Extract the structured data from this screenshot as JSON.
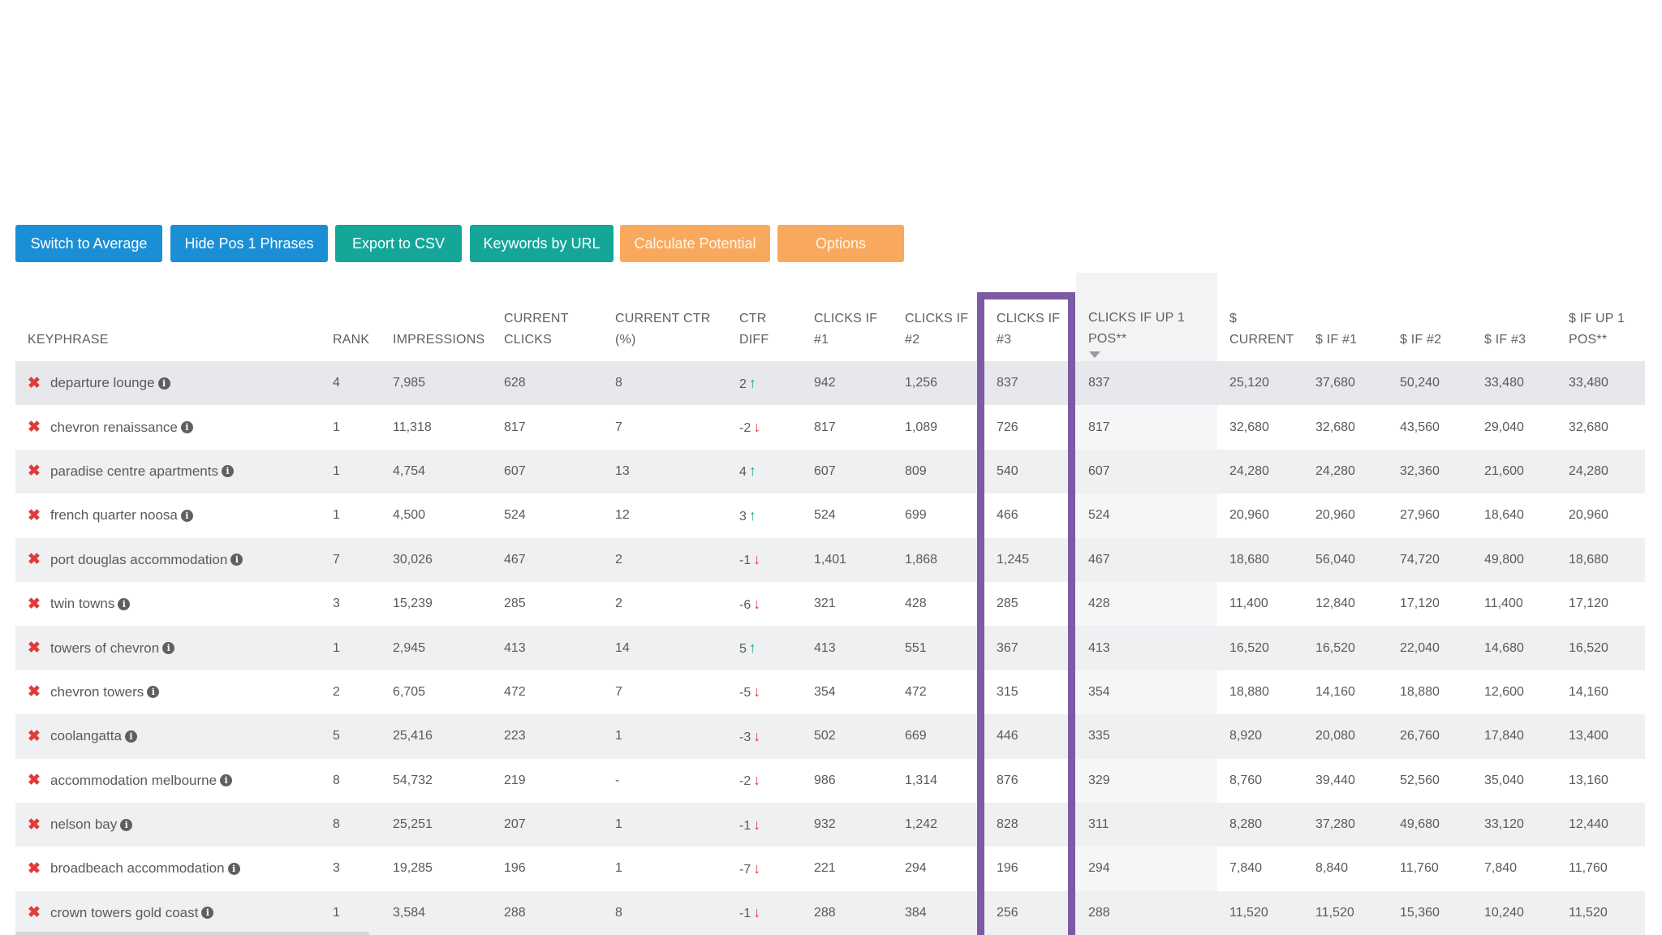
{
  "toolbar": {
    "buttons": [
      {
        "label": "Switch to Average",
        "color": "#1a8fd6"
      },
      {
        "label": "Hide Pos 1 Phrases",
        "color": "#1a8fd6"
      },
      {
        "label": "Export to CSV",
        "color": "#15a69a"
      },
      {
        "label": "Keywords by URL",
        "color": "#15a69a"
      },
      {
        "label": "Calculate Potential",
        "color": "#f9a95d"
      },
      {
        "label": "Options",
        "color": "#f9a95d"
      }
    ]
  },
  "table": {
    "columns": [
      "KEYPHRASE",
      "RANK",
      "IMPRESSIONS",
      "CURRENT CLICKS",
      "CURRENT CTR (%)",
      "CTR DIFF",
      "CLICKS IF #1",
      "CLICKS IF #2",
      "CLICKS IF #3",
      "CLICKS IF UP 1 POS**",
      "$ CURRENT",
      "$ IF #1",
      "$ IF #2",
      "$ IF #3",
      "$ IF UP 1 POS**"
    ],
    "sorted_column": "CLICKS IF UP 1 POS**",
    "highlighted_column": "CLICKS IF #3",
    "highlight_color": "#7d5aa6",
    "rows": [
      {
        "keyphrase": "departure lounge",
        "rank": "4",
        "impressions": "7,985",
        "current_clicks": "628",
        "current_ctr": "8",
        "ctr_diff": "2",
        "ctr_dir": "up",
        "clicks_1": "942",
        "clicks_2": "1,256",
        "clicks_3": "837",
        "clicks_up1": "837",
        "usd_current": "25,120",
        "usd_1": "37,680",
        "usd_2": "50,240",
        "usd_3": "33,480",
        "usd_up1": "33,480"
      },
      {
        "keyphrase": "chevron renaissance",
        "rank": "1",
        "impressions": "11,318",
        "current_clicks": "817",
        "current_ctr": "7",
        "ctr_diff": "-2",
        "ctr_dir": "down",
        "clicks_1": "817",
        "clicks_2": "1,089",
        "clicks_3": "726",
        "clicks_up1": "817",
        "usd_current": "32,680",
        "usd_1": "32,680",
        "usd_2": "43,560",
        "usd_3": "29,040",
        "usd_up1": "32,680"
      },
      {
        "keyphrase": "paradise centre apartments",
        "rank": "1",
        "impressions": "4,754",
        "current_clicks": "607",
        "current_ctr": "13",
        "ctr_diff": "4",
        "ctr_dir": "up",
        "clicks_1": "607",
        "clicks_2": "809",
        "clicks_3": "540",
        "clicks_up1": "607",
        "usd_current": "24,280",
        "usd_1": "24,280",
        "usd_2": "32,360",
        "usd_3": "21,600",
        "usd_up1": "24,280"
      },
      {
        "keyphrase": "french quarter noosa",
        "rank": "1",
        "impressions": "4,500",
        "current_clicks": "524",
        "current_ctr": "12",
        "ctr_diff": "3",
        "ctr_dir": "up",
        "clicks_1": "524",
        "clicks_2": "699",
        "clicks_3": "466",
        "clicks_up1": "524",
        "usd_current": "20,960",
        "usd_1": "20,960",
        "usd_2": "27,960",
        "usd_3": "18,640",
        "usd_up1": "20,960"
      },
      {
        "keyphrase": "port douglas accommodation",
        "rank": "7",
        "impressions": "30,026",
        "current_clicks": "467",
        "current_ctr": "2",
        "ctr_diff": "-1",
        "ctr_dir": "down",
        "clicks_1": "1,401",
        "clicks_2": "1,868",
        "clicks_3": "1,245",
        "clicks_up1": "467",
        "usd_current": "18,680",
        "usd_1": "56,040",
        "usd_2": "74,720",
        "usd_3": "49,800",
        "usd_up1": "18,680"
      },
      {
        "keyphrase": "twin towns",
        "rank": "3",
        "impressions": "15,239",
        "current_clicks": "285",
        "current_ctr": "2",
        "ctr_diff": "-6",
        "ctr_dir": "down",
        "clicks_1": "321",
        "clicks_2": "428",
        "clicks_3": "285",
        "clicks_up1": "428",
        "usd_current": "11,400",
        "usd_1": "12,840",
        "usd_2": "17,120",
        "usd_3": "11,400",
        "usd_up1": "17,120"
      },
      {
        "keyphrase": "towers of chevron",
        "rank": "1",
        "impressions": "2,945",
        "current_clicks": "413",
        "current_ctr": "14",
        "ctr_diff": "5",
        "ctr_dir": "up",
        "clicks_1": "413",
        "clicks_2": "551",
        "clicks_3": "367",
        "clicks_up1": "413",
        "usd_current": "16,520",
        "usd_1": "16,520",
        "usd_2": "22,040",
        "usd_3": "14,680",
        "usd_up1": "16,520"
      },
      {
        "keyphrase": "chevron towers",
        "rank": "2",
        "impressions": "6,705",
        "current_clicks": "472",
        "current_ctr": "7",
        "ctr_diff": "-5",
        "ctr_dir": "down",
        "clicks_1": "354",
        "clicks_2": "472",
        "clicks_3": "315",
        "clicks_up1": "354",
        "usd_current": "18,880",
        "usd_1": "14,160",
        "usd_2": "18,880",
        "usd_3": "12,600",
        "usd_up1": "14,160"
      },
      {
        "keyphrase": "coolangatta",
        "rank": "5",
        "impressions": "25,416",
        "current_clicks": "223",
        "current_ctr": "1",
        "ctr_diff": "-3",
        "ctr_dir": "down",
        "clicks_1": "502",
        "clicks_2": "669",
        "clicks_3": "446",
        "clicks_up1": "335",
        "usd_current": "8,920",
        "usd_1": "20,080",
        "usd_2": "26,760",
        "usd_3": "17,840",
        "usd_up1": "13,400"
      },
      {
        "keyphrase": "accommodation melbourne",
        "rank": "8",
        "impressions": "54,732",
        "current_clicks": "219",
        "current_ctr": "-",
        "ctr_diff": "-2",
        "ctr_dir": "down",
        "clicks_1": "986",
        "clicks_2": "1,314",
        "clicks_3": "876",
        "clicks_up1": "329",
        "usd_current": "8,760",
        "usd_1": "39,440",
        "usd_2": "52,560",
        "usd_3": "35,040",
        "usd_up1": "13,160"
      },
      {
        "keyphrase": "nelson bay",
        "rank": "8",
        "impressions": "25,251",
        "current_clicks": "207",
        "current_ctr": "1",
        "ctr_diff": "-1",
        "ctr_dir": "down",
        "clicks_1": "932",
        "clicks_2": "1,242",
        "clicks_3": "828",
        "clicks_up1": "311",
        "usd_current": "8,280",
        "usd_1": "37,280",
        "usd_2": "49,680",
        "usd_3": "33,120",
        "usd_up1": "12,440"
      },
      {
        "keyphrase": "broadbeach accommodation",
        "rank": "3",
        "impressions": "19,285",
        "current_clicks": "196",
        "current_ctr": "1",
        "ctr_diff": "-7",
        "ctr_dir": "down",
        "clicks_1": "221",
        "clicks_2": "294",
        "clicks_3": "196",
        "clicks_up1": "294",
        "usd_current": "7,840",
        "usd_1": "8,840",
        "usd_2": "11,760",
        "usd_3": "7,840",
        "usd_up1": "11,760"
      },
      {
        "keyphrase": "crown towers gold coast",
        "rank": "1",
        "impressions": "3,584",
        "current_clicks": "288",
        "current_ctr": "8",
        "ctr_diff": "-1",
        "ctr_dir": "down",
        "clicks_1": "288",
        "clicks_2": "384",
        "clicks_3": "256",
        "clicks_up1": "288",
        "usd_current": "11,520",
        "usd_1": "11,520",
        "usd_2": "15,360",
        "usd_3": "10,240",
        "usd_up1": "11,520"
      }
    ]
  },
  "icons": {
    "remove": "x-icon",
    "info": "info-icon",
    "ctr_up": "arrow-up-icon",
    "ctr_down": "arrow-down-icon",
    "sort": "sort-desc-icon"
  }
}
